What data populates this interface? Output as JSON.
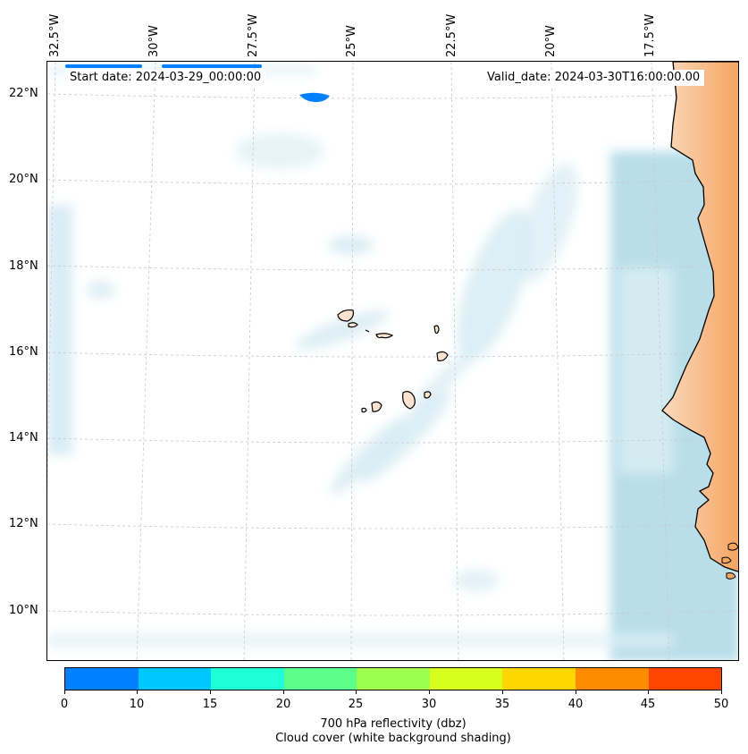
{
  "header": {
    "start_date_label": "Start date: 2024-03-29_00:00:00",
    "valid_date_label": "Valid_date: 2024-03-30T16:00:00.00"
  },
  "longitude_labels": [
    "32.5°W",
    "30°W",
    "27.5°W",
    "25°W",
    "22.5°W",
    "20°W",
    "17.5°W"
  ],
  "latitude_labels": [
    "22°N",
    "20°N",
    "18°N",
    "16°N",
    "14°N",
    "12°N",
    "10°N"
  ],
  "colorbar": {
    "tick_labels": [
      "0",
      "10",
      "15",
      "20",
      "25",
      "30",
      "35",
      "40",
      "45",
      "50"
    ],
    "colors": [
      "#0080ff",
      "#00c8ff",
      "#1effd8",
      "#5cff8a",
      "#9cff4e",
      "#d8ff1e",
      "#ffd700",
      "#ff8c00",
      "#ff4500"
    ],
    "title": "700 hPa reflectivity (dbz)",
    "subtitle": "Cloud cover (white background shading)"
  },
  "map": {
    "land_color": "#f4a460",
    "island_fill": "#fde3cf",
    "cloud_color": "#add8e6",
    "reflectivity_color": "#0080ff"
  }
}
